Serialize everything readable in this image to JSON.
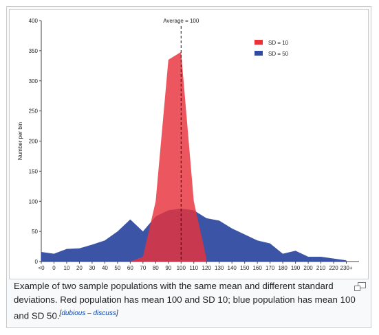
{
  "caption": {
    "text": "Example of two sample populations with the same mean and different standard deviations. Red population has mean 100 and SD 10; blue population has mean 100 and SD 50.",
    "note_open": "[",
    "note_dubious": "dubious",
    "note_sep": " – ",
    "note_discuss": "discuss",
    "note_close": "]"
  },
  "icons": {
    "magnify": "magnify-icon"
  },
  "chart_data": {
    "type": "area",
    "title": "",
    "xlabel": "",
    "ylabel": "Number per bin",
    "ylim": [
      0,
      400
    ],
    "yticks": [
      0,
      50,
      100,
      150,
      200,
      250,
      300,
      350,
      400
    ],
    "xlim": [
      -10,
      240
    ],
    "x_tick_values": [
      -10,
      0,
      10,
      20,
      30,
      40,
      50,
      60,
      70,
      80,
      90,
      100,
      110,
      120,
      130,
      140,
      150,
      160,
      170,
      180,
      190,
      200,
      210,
      220,
      230
    ],
    "x_tick_labels": [
      "<0",
      "0",
      "10",
      "20",
      "30",
      "40",
      "50",
      "60",
      "70",
      "80",
      "90",
      "100",
      "110",
      "120",
      "130",
      "140",
      "150",
      "160",
      "170",
      "180",
      "190",
      "200",
      "210",
      "220",
      "230+"
    ],
    "legend_position": "top-right",
    "annotation": {
      "text": "Average = 100",
      "x": 100
    },
    "series": [
      {
        "name": "SD = 10",
        "color": "#e8323c",
        "x": [
          60,
          70,
          80,
          90,
          100,
          110,
          120
        ],
        "values": [
          0,
          8,
          100,
          335,
          348,
          100,
          5
        ]
      },
      {
        "name": "SD = 50",
        "color": "#304ba0",
        "x": [
          -10,
          0,
          10,
          20,
          30,
          40,
          50,
          60,
          70,
          80,
          90,
          100,
          110,
          120,
          130,
          140,
          150,
          160,
          170,
          180,
          190,
          200,
          210,
          220,
          230
        ],
        "values": [
          16,
          13,
          21,
          22,
          28,
          35,
          50,
          70,
          50,
          75,
          85,
          88,
          85,
          72,
          68,
          55,
          45,
          35,
          30,
          13,
          18,
          8,
          8,
          5,
          2
        ]
      }
    ]
  }
}
